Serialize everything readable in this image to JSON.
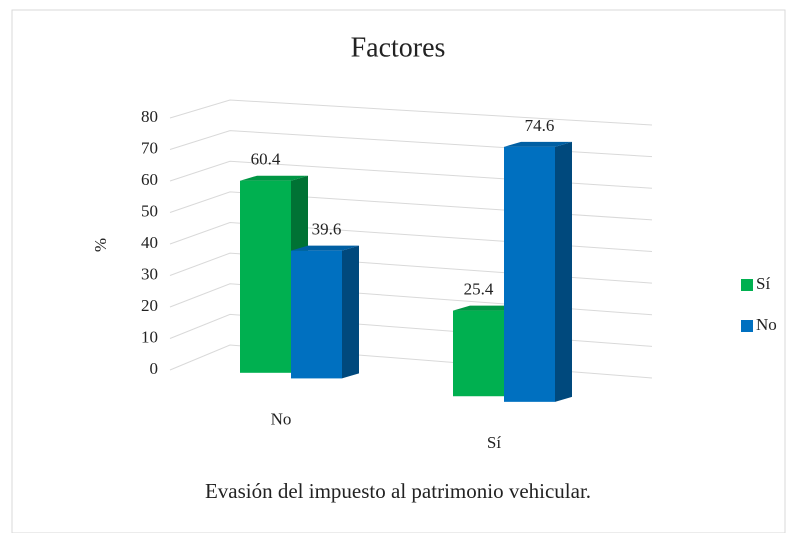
{
  "chart_data": {
    "type": "bar3d",
    "title": "Factores",
    "xlabel": "Evasión del impuesto al patrimonio vehicular.",
    "ylabel": "%",
    "categories": [
      "No",
      "Sí"
    ],
    "series": [
      {
        "name": "Sí",
        "color": "#00b050",
        "values": [
          60.4,
          25.4
        ]
      },
      {
        "name": "No",
        "color": "#0070c0",
        "values": [
          39.6,
          74.6
        ]
      }
    ],
    "ylim": [
      0,
      80
    ],
    "yticks": [
      0,
      10,
      20,
      30,
      40,
      50,
      60,
      70,
      80
    ],
    "grid": true,
    "legend": "right"
  }
}
